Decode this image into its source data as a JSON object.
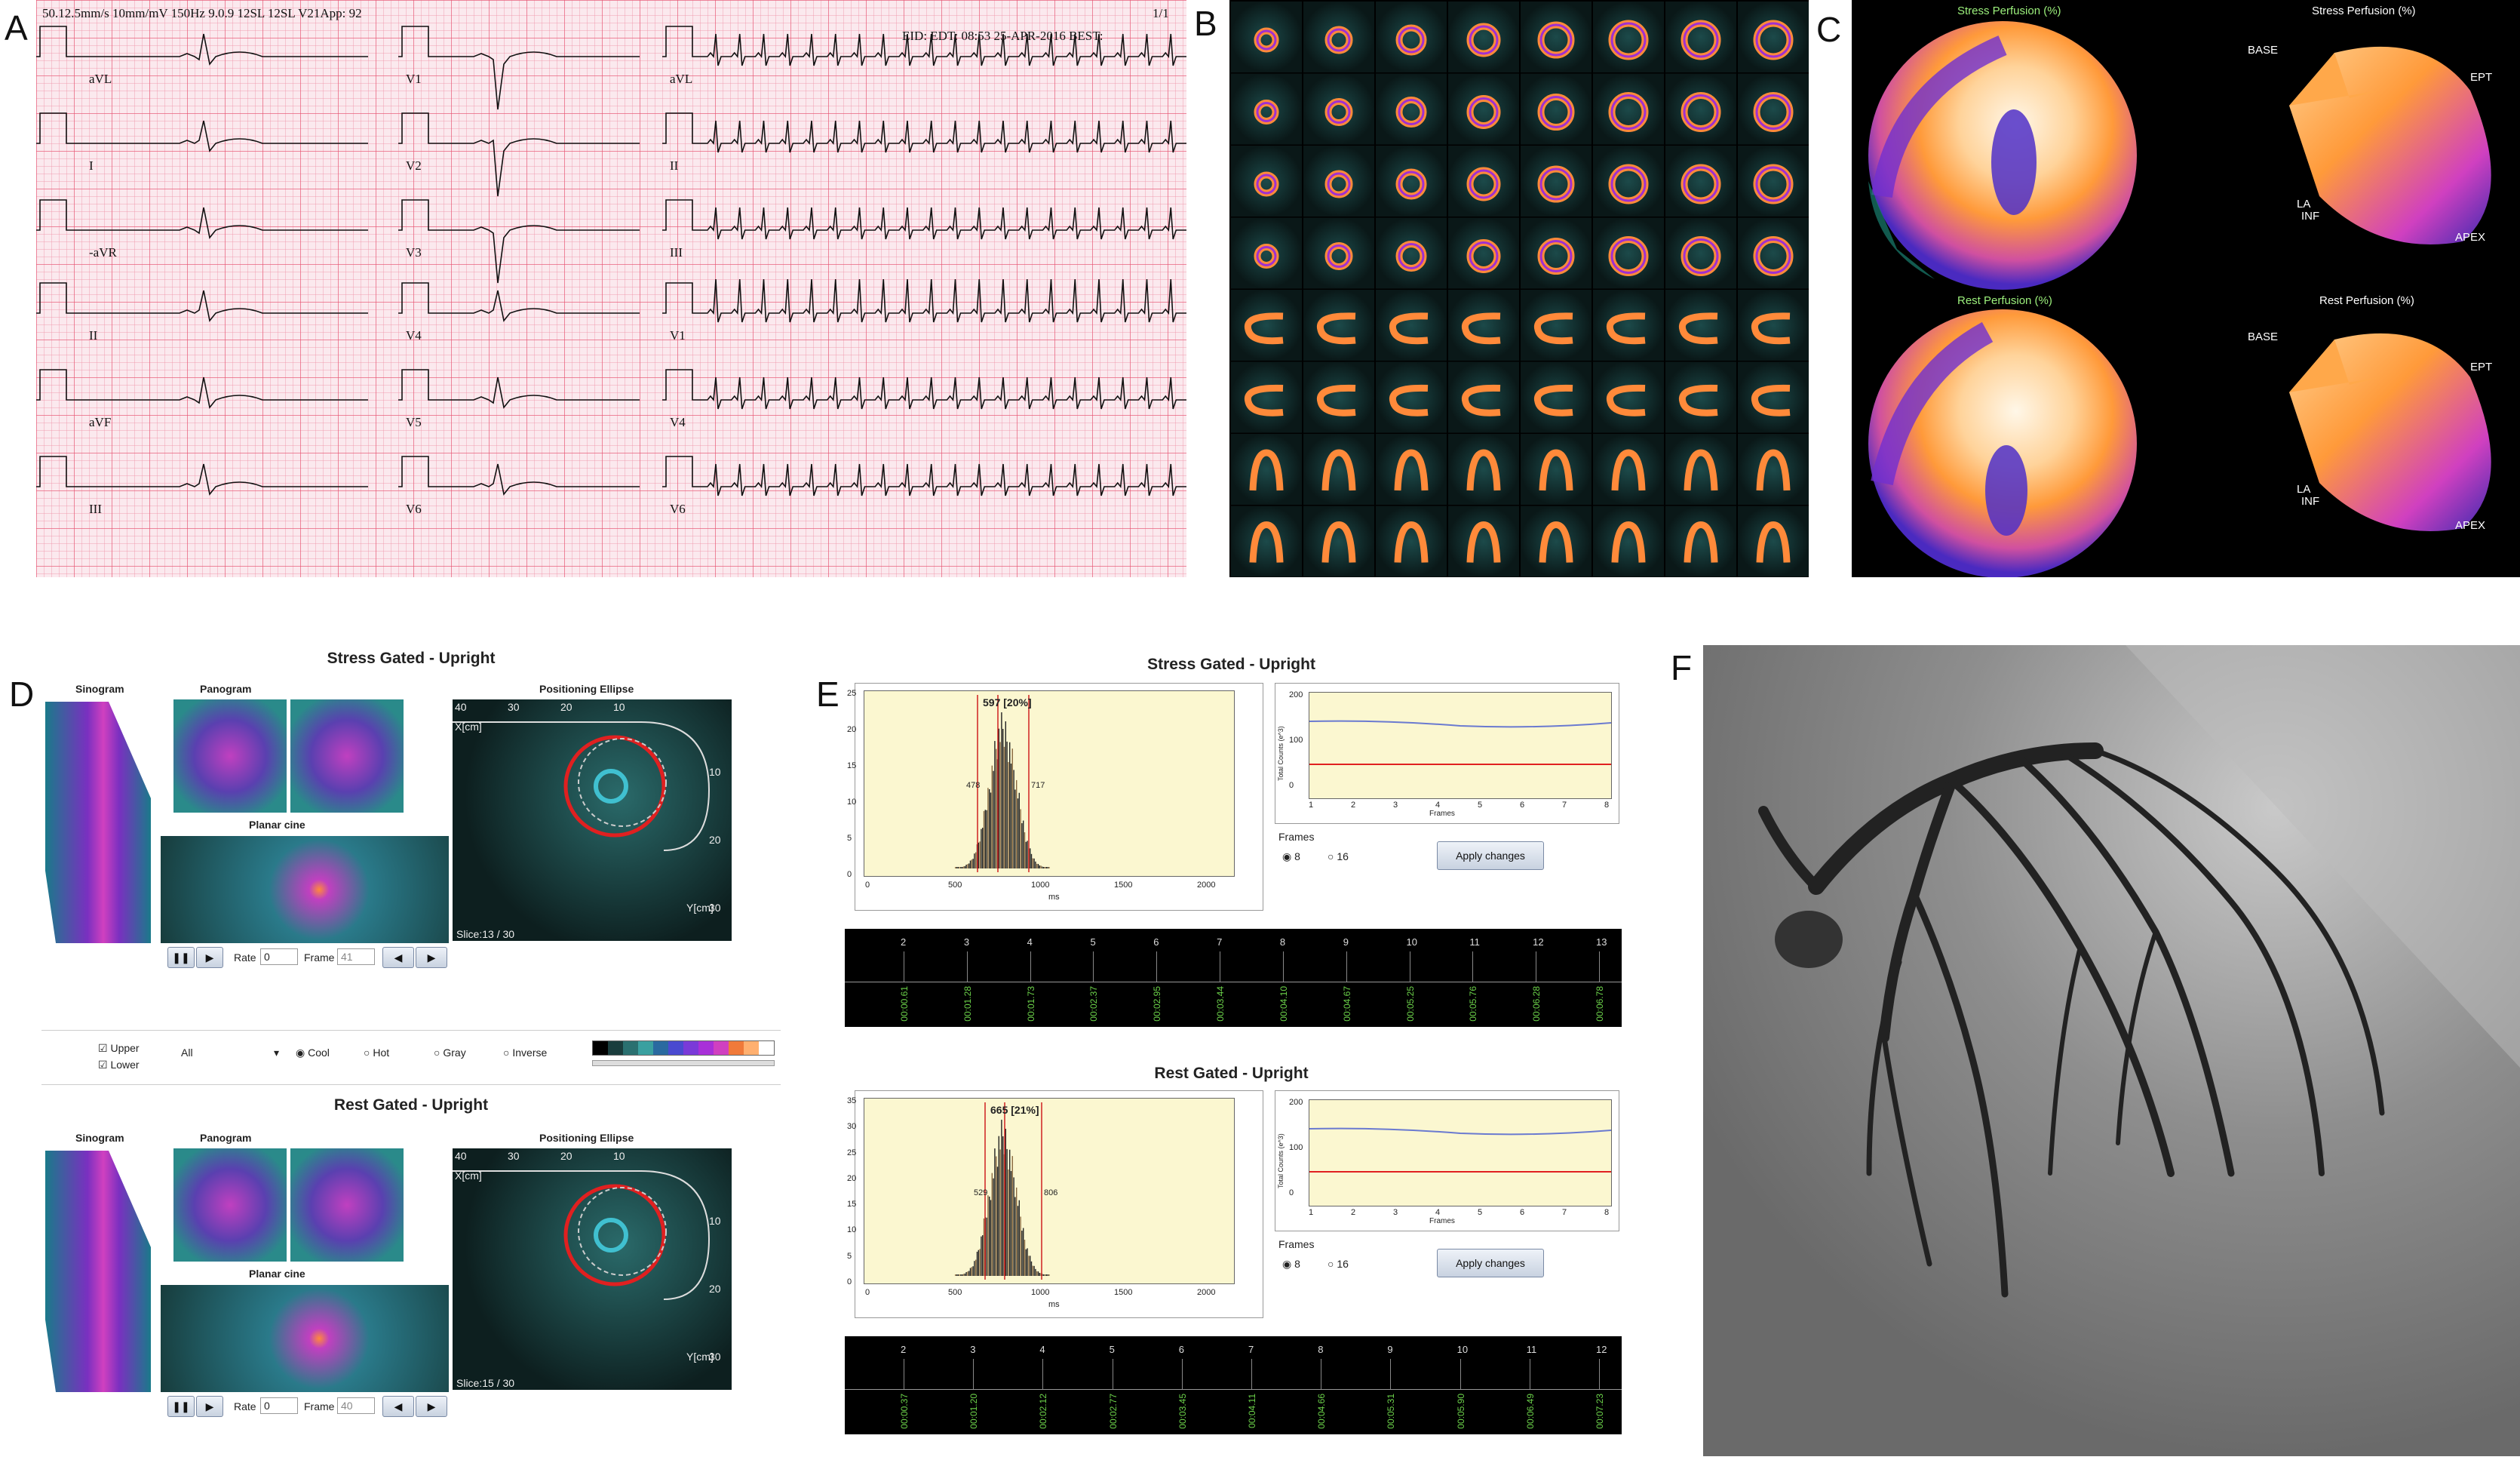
{
  "panel_labels": [
    "A",
    "B",
    "C",
    "D",
    "E",
    "F"
  ],
  "ecg": {
    "header_left": "50.12.5mm/s      10mm/mV      150Hz      9.0.9      12SL 12SL V21App: 92",
    "header_right": "EID:      EDT: 08:53 25-APR-2016 BEST:",
    "page": "1/1",
    "col1": [
      "aVL",
      "I",
      "-aVR",
      "II",
      "aVF",
      "III"
    ],
    "col2": [
      "V1",
      "V2",
      "V3",
      "V4",
      "V5",
      "V6"
    ],
    "col3": [
      "aVL",
      "II",
      "III",
      "V1",
      "V4",
      "V6"
    ]
  },
  "polar": {
    "stress_title": "Stress Perfusion (%)",
    "rest_title": "Rest Perfusion (%)",
    "labels": {
      "base": "BASE",
      "sept": "EPT",
      "la": "LA",
      "inf": "INF",
      "apex": "APEX"
    }
  },
  "gated": {
    "stress_title": "Stress Gated  -  Upright",
    "rest_title": "Rest Gated  -  Upright",
    "sinogram": "Sinogram",
    "panogram": "Panogram",
    "planar_cine": "Planar cine",
    "positioning_ellipse": "Positioning Ellipse",
    "xcm": "X[cm]",
    "ycm": "Y[cm]",
    "axis_top": [
      "40",
      "30",
      "20",
      "10"
    ],
    "axis_right": [
      "10",
      "20",
      "30"
    ],
    "stress_slice": "Slice:13 / 30",
    "rest_slice": "Slice:15 / 30",
    "rate_label": "Rate",
    "rate_value": "0",
    "frame_label": "Frame",
    "stress_frame": "41",
    "rest_frame": "40",
    "upper": "Upper",
    "lower": "Lower",
    "select_value": "All",
    "palettes": [
      "Cool",
      "Hot",
      "Gray",
      "Inverse"
    ],
    "colorbar": [
      "#000000",
      "#1a3d3d",
      "#2a7070",
      "#3aa0a0",
      "#2a6aa0",
      "#4a4ad0",
      "#7a3ad8",
      "#a830d8",
      "#d040c0",
      "#f07a3a",
      "#ffb070",
      "#ffffff"
    ]
  },
  "histograms": {
    "stress_title": "Stress Gated  -  Upright",
    "rest_title": "Rest Gated  -  Upright",
    "stress_peak": "597 [20%]",
    "rest_peak": "665 [21%]",
    "stress_lo": "478",
    "stress_hi": "717",
    "rest_lo": "529",
    "rest_hi": "806",
    "x_ticks": [
      "0",
      "500",
      "1000",
      "1500",
      "2000"
    ],
    "x_unit": "ms",
    "stress_y_ticks": [
      "25",
      "20",
      "15",
      "10",
      "5",
      "0"
    ],
    "rest_y_ticks": [
      "35",
      "30",
      "25",
      "20",
      "15",
      "10",
      "5",
      "0"
    ],
    "counts_ylabel": "Total Counts (e^3)",
    "counts_y_ticks": [
      "200",
      "100",
      "0"
    ],
    "frames_ticks": [
      "1",
      "2",
      "3",
      "4",
      "5",
      "6",
      "7",
      "8"
    ],
    "frames_label": "Frames",
    "opt8": "8",
    "opt16": "16",
    "apply": "Apply changes",
    "stress_timeline_nums": [
      "2",
      "3",
      "4",
      "5",
      "6",
      "7",
      "8",
      "9",
      "10",
      "11",
      "12",
      "13"
    ],
    "stress_timeline_vals": [
      "00:00.61",
      "00:01.28",
      "00:01.73",
      "00:02.37",
      "00:02.95",
      "00:03.44",
      "00:04.10",
      "00:04.67",
      "00:05.25",
      "00:05.76",
      "00:06.28",
      "00:06.78"
    ],
    "rest_timeline_nums": [
      "2",
      "3",
      "4",
      "5",
      "6",
      "7",
      "8",
      "9",
      "10",
      "11",
      "12"
    ],
    "rest_timeline_vals": [
      "00:00.37",
      "00:01.20",
      "00:02.12",
      "00:02.77",
      "00:03.45",
      "00:04.11",
      "00:04.66",
      "00:05.31",
      "00:05.90",
      "00:06.49",
      "00:07.23"
    ]
  },
  "angiogram": {
    "label": "F"
  }
}
